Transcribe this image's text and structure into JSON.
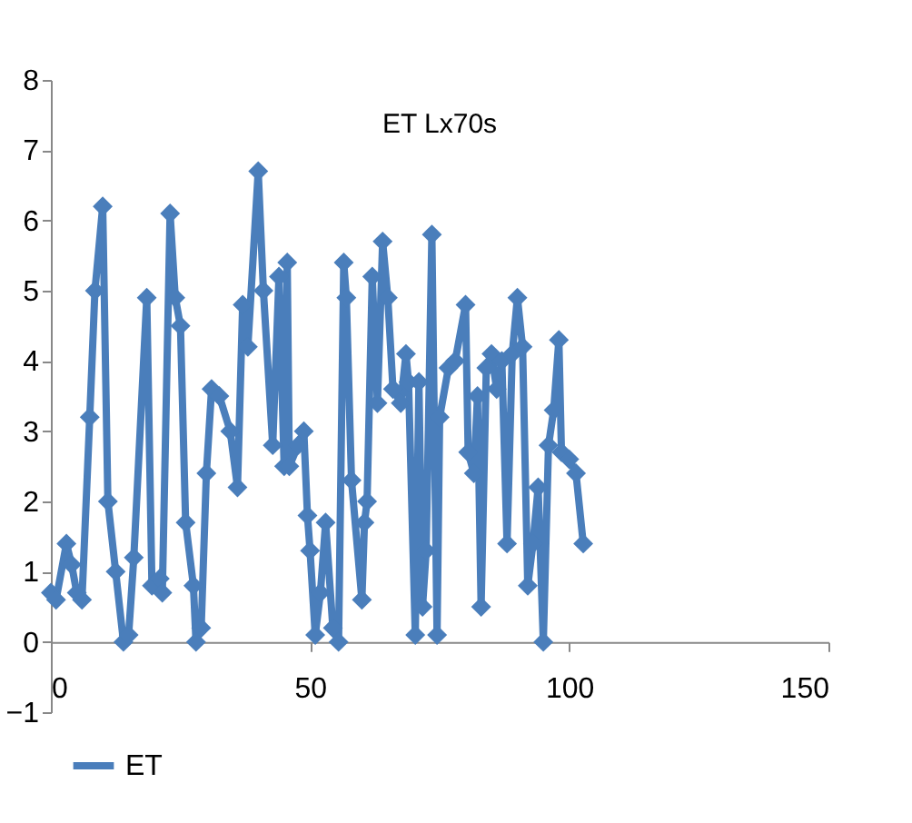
{
  "chart_data": {
    "type": "line",
    "title": "ET Lx70s",
    "x": [
      0,
      1,
      3,
      4,
      5,
      6,
      7.5,
      8.5,
      10,
      11,
      12.5,
      14,
      15,
      16,
      18.5,
      19.5,
      21,
      21.5,
      23,
      24,
      25,
      26,
      27.5,
      28,
      29,
      30,
      31,
      32.5,
      34.6,
      36,
      37,
      38,
      40,
      41,
      42.8,
      44,
      45,
      45.6,
      46,
      47.7,
      48.8,
      49.5,
      50,
      51,
      52,
      53,
      54.4,
      55.5,
      56.5,
      57,
      58,
      60,
      60.5,
      61,
      62,
      63,
      64,
      65,
      66,
      67.5,
      68.5,
      69,
      70.3,
      71,
      71.7,
      72.4,
      73.5,
      74.5,
      75,
      76.7,
      78,
      80,
      80.5,
      81.6,
      82.3,
      83,
      84,
      85,
      86,
      87,
      88,
      89,
      90,
      91,
      92,
      93,
      94,
      95,
      96,
      97,
      98,
      98.5,
      100,
      101.3,
      102.7
    ],
    "series": [
      {
        "name": "ET",
        "color": "#4a7ebb",
        "values": [
          0.7,
          0.6,
          1.4,
          1.1,
          0.7,
          0.6,
          3.2,
          5.0,
          6.2,
          2.0,
          1.0,
          0.0,
          0.1,
          1.2,
          4.9,
          0.8,
          0.9,
          0.7,
          6.1,
          4.9,
          4.5,
          1.7,
          0.8,
          0.0,
          0.2,
          2.4,
          3.6,
          3.5,
          3.0,
          2.2,
          4.8,
          4.2,
          6.7,
          5.0,
          2.8,
          5.2,
          2.5,
          5.4,
          2.5,
          2.8,
          3.0,
          1.8,
          1.3,
          0.1,
          0.7,
          1.7,
          0.2,
          0.0,
          5.4,
          4.9,
          2.3,
          0.6,
          1.7,
          2.0,
          5.2,
          3.4,
          5.7,
          4.9,
          3.6,
          3.4,
          4.1,
          3.7,
          0.1,
          3.7,
          0.5,
          1.3,
          5.8,
          0.1,
          3.2,
          3.9,
          4.0,
          4.8,
          2.7,
          2.4,
          3.5,
          0.5,
          3.9,
          4.1,
          3.6,
          4.0,
          1.4,
          4.1,
          4.9,
          4.2,
          0.8,
          1.4,
          2.2,
          0.0,
          2.8,
          3.3,
          4.3,
          2.7,
          2.6,
          2.4,
          1.4
        ]
      }
    ],
    "xlim": [
      0,
      150
    ],
    "xticks": [
      0,
      50,
      100,
      150
    ],
    "ylim": [
      -1,
      8
    ],
    "yticks": [
      -1,
      0,
      1,
      2,
      3,
      4,
      5,
      6,
      7,
      8
    ],
    "legend": "bottom left",
    "marker": "diamond",
    "line_style": "solid"
  }
}
